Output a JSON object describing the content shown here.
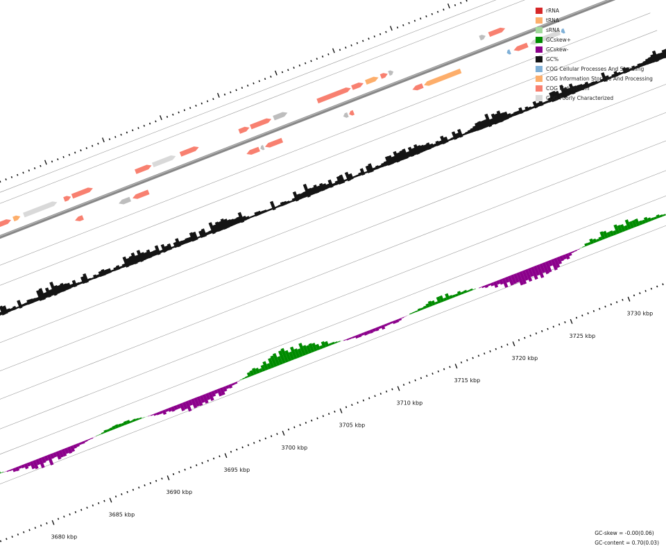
{
  "legend": [
    {
      "label": "rRNA",
      "color": "#d62728"
    },
    {
      "label": "tRNA",
      "color": "#fdae6b"
    },
    {
      "label": "sRNA",
      "color": "#a1d99b"
    },
    {
      "label": "GCskew+",
      "color": "#008b00"
    },
    {
      "label": "GCskew-",
      "color": "#8b008b"
    },
    {
      "label": "GC%",
      "color": "#141414"
    },
    {
      "label": "COG Cellular Processes And Signaling",
      "color": "#7fb0d7"
    },
    {
      "label": "COG Information Storage And Processing",
      "color": "#fdae6b"
    },
    {
      "label": "COG Metabolism",
      "color": "#f88070"
    },
    {
      "label": "COG Poorly Characterized",
      "color": "#d9d9d9"
    }
  ],
  "axis": {
    "unit": "kbp",
    "labels": [
      "3680 kbp",
      "3685 kbp",
      "3690 kbp",
      "3695 kbp",
      "3700 kbp",
      "3705 kbp",
      "3710 kbp",
      "3715 kbp",
      "3720 kbp",
      "3725 kbp",
      "3730 kbp"
    ],
    "positions_kbp": [
      3680,
      3685,
      3690,
      3695,
      3700,
      3705,
      3710,
      3715,
      3720,
      3725,
      3730
    ]
  },
  "stats": {
    "gc_skew": "GC-skew = -0.00(0.06)",
    "gc_content": "GC-content = 0.70(0.03)"
  },
  "genes": {
    "range_kbp": [
      3675.5,
      3733
    ],
    "forward": [
      {
        "start": 3680.2,
        "end": 3681.8,
        "cog": "COG Metabolism"
      },
      {
        "start": 3682.0,
        "end": 3683.8,
        "cog": "COG Poorly Characterized"
      },
      {
        "start": 3684.2,
        "end": 3685.7,
        "cog": "COG Metabolism"
      },
      {
        "start": 3685.9,
        "end": 3686.5,
        "cog": "COG Information Storage And Processing"
      },
      {
        "start": 3686.8,
        "end": 3689.7,
        "cog": "COG Poorly Characterized"
      },
      {
        "start": 3690.3,
        "end": 3690.9,
        "cog": "COG Metabolism"
      },
      {
        "start": 3691.0,
        "end": 3692.8,
        "cog": "COG Metabolism"
      },
      {
        "start": 3696.5,
        "end": 3697.9,
        "cog": "COG Metabolism"
      },
      {
        "start": 3698.0,
        "end": 3700.0,
        "cog": "COG Poorly Characterized"
      },
      {
        "start": 3700.4,
        "end": 3702.0,
        "cog": "COG Metabolism"
      },
      {
        "start": 3705.5,
        "end": 3706.4,
        "cog": "COG Metabolism"
      },
      {
        "start": 3706.5,
        "end": 3708.3,
        "cog": "COG Metabolism"
      },
      {
        "start": 3708.5,
        "end": 3709.7,
        "cog": "COG Poorly Characterized"
      },
      {
        "start": 3712.3,
        "end": 3715.2,
        "cog": "COG Metabolism"
      },
      {
        "start": 3715.3,
        "end": 3716.3,
        "cog": "COG Metabolism"
      },
      {
        "start": 3716.5,
        "end": 3717.6,
        "cog": "COG Information Storage And Processing"
      },
      {
        "start": 3717.8,
        "end": 3718.4,
        "cog": "COG Metabolism"
      },
      {
        "start": 3718.5,
        "end": 3718.9,
        "cog": "COG Poorly Characterized"
      },
      {
        "start": 3726.4,
        "end": 3726.9,
        "cog": "COG Poorly Characterized"
      },
      {
        "start": 3727.2,
        "end": 3728.6,
        "cog": "COG Metabolism"
      }
    ],
    "reverse": [
      {
        "start": 3676.2,
        "end": 3676.9,
        "cog": "COG Cellular Processes And Signaling"
      },
      {
        "start": 3677.1,
        "end": 3678.2,
        "cog": "COG Cellular Processes And Signaling"
      },
      {
        "start": 3678.3,
        "end": 3678.9,
        "cog": "COG Poorly Characterized"
      },
      {
        "start": 3679.0,
        "end": 3679.9,
        "cog": "COG Metabolism"
      },
      {
        "start": 3680.1,
        "end": 3681.0,
        "cog": "COG Metabolism"
      },
      {
        "start": 3690.5,
        "end": 3691.2,
        "cog": "COG Metabolism"
      },
      {
        "start": 3694.3,
        "end": 3695.3,
        "cog": "COG Poorly Characterized"
      },
      {
        "start": 3695.5,
        "end": 3696.9,
        "cog": "COG Metabolism"
      },
      {
        "start": 3705.4,
        "end": 3706.5,
        "cog": "COG Metabolism"
      },
      {
        "start": 3706.6,
        "end": 3706.9,
        "cog": "COG Poorly Characterized"
      },
      {
        "start": 3707.0,
        "end": 3708.5,
        "cog": "COG Metabolism"
      },
      {
        "start": 3713.8,
        "end": 3714.2,
        "cog": "COG Poorly Characterized"
      },
      {
        "start": 3714.3,
        "end": 3714.7,
        "cog": "COG Metabolism"
      },
      {
        "start": 3719.8,
        "end": 3720.7,
        "cog": "COG Metabolism"
      },
      {
        "start": 3720.8,
        "end": 3724.0,
        "cog": "COG Information Storage And Processing"
      },
      {
        "start": 3728.0,
        "end": 3728.3,
        "cog": "COG Cellular Processes And Signaling"
      },
      {
        "start": 3728.6,
        "end": 3729.8,
        "cog": "COG Metabolism"
      },
      {
        "start": 3730.0,
        "end": 3732.6,
        "cog": "COG Poorly Characterized"
      },
      {
        "start": 3732.7,
        "end": 3733.0,
        "cog": "COG Cellular Processes And Signaling"
      }
    ]
  }
}
